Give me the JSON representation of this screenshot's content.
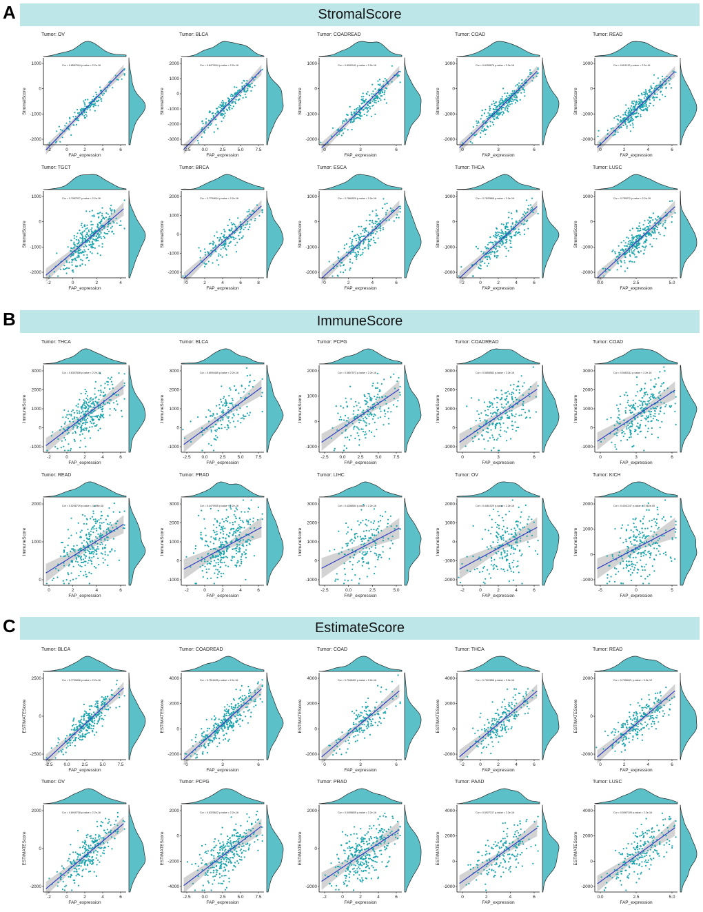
{
  "chart_data": [
    {
      "letter": "A",
      "title": "StromalScore",
      "type": "scatter",
      "xlabel": "FAP_expression",
      "ylabel": "StromalScore",
      "panels": [
        {
          "tumor": "Tumor: OV",
          "cor": "Cor = 0.8567504  p-value < 2.2e-16",
          "xticks": [
            "-2",
            "0",
            "2",
            "4",
            "6"
          ],
          "yticks": [
            "-2000",
            "-1000",
            "0",
            "1000"
          ]
        },
        {
          "tumor": "Tumor: BLCA",
          "cor": "Cor = 0.8473004  p-value < 2.2e-16",
          "xticks": [
            "-2.5",
            "0.0",
            "2.5",
            "5.0",
            "7.5"
          ],
          "yticks": [
            "-3000",
            "-2000",
            "-1000",
            "0",
            "1000",
            "2000"
          ]
        },
        {
          "tumor": "Tumor: COADREAD",
          "cor": "Cor = 0.8182181  p-value < 2.2e-16",
          "xticks": [
            "0",
            "3",
            "6"
          ],
          "yticks": [
            "-2000",
            "-1000",
            "0",
            "1000"
          ]
        },
        {
          "tumor": "Tumor: COAD",
          "cor": "Cor = 0.8155878  p-value < 2.2e-16",
          "xticks": [
            "0",
            "3",
            "6"
          ],
          "yticks": [
            "-2000",
            "-1000",
            "0",
            "1000"
          ]
        },
        {
          "tumor": "Tumor: READ",
          "cor": "Cor = 0.811132  p-value < 2.2e-16",
          "xticks": [
            "0",
            "2",
            "4",
            "6"
          ],
          "yticks": [
            "-2000",
            "-1000",
            "0",
            "1000"
          ]
        },
        {
          "tumor": "Tumor: TGCT",
          "cor": "Cor = 0.7087527  p-value < 2.2e-16",
          "xticks": [
            "-2",
            "0",
            "2",
            "4"
          ],
          "yticks": [
            "-2000",
            "-1000",
            "0",
            "1000"
          ]
        },
        {
          "tumor": "Tumor: BRCA",
          "cor": "Cor = 0.7754634  p-value < 2.2e-16",
          "xticks": [
            "0",
            "2",
            "4",
            "6",
            "8"
          ],
          "yticks": [
            "-2000",
            "-1000",
            "0",
            "1000",
            "2000"
          ]
        },
        {
          "tumor": "Tumor: ESCA",
          "cor": "Cor = 0.7684529  p-value < 2.2e-16",
          "xticks": [
            "0",
            "2",
            "4",
            "6"
          ],
          "yticks": [
            "-2000",
            "-1000",
            "0",
            "1000"
          ]
        },
        {
          "tumor": "Tumor: THCA",
          "cor": "Cor = 0.7633868  p-value < 2.2e-16",
          "xticks": [
            "-2",
            "0",
            "2",
            "4",
            "6"
          ],
          "yticks": [
            "-2000",
            "-1000",
            "0",
            "1000"
          ]
        },
        {
          "tumor": "Tumor: LUSC",
          "cor": "Cor = 0.759072  p-value < 2.2e-16",
          "xticks": [
            "0.0",
            "2.5",
            "5.0"
          ],
          "yticks": [
            "-2000",
            "-1000",
            "0",
            "1000"
          ]
        }
      ]
    },
    {
      "letter": "B",
      "title": "ImmuneScore",
      "type": "scatter",
      "xlabel": "FAP_expression",
      "ylabel": "ImmuneScore",
      "panels": [
        {
          "tumor": "Tumor: THCA",
          "cor": "Cor = 0.6307808  p-value < 2.2e-16",
          "xticks": [
            "-2",
            "0",
            "2",
            "4",
            "6"
          ],
          "yticks": [
            "-1000",
            "0",
            "1000",
            "2000",
            "3000"
          ]
        },
        {
          "tumor": "Tumor: BLCA",
          "cor": "Cor = 0.6094465  p-value < 2.2e-16",
          "xticks": [
            "-2.5",
            "0.0",
            "2.5",
            "5.0",
            "7.5"
          ],
          "yticks": [
            "-1000",
            "0",
            "1000",
            "2000",
            "3000"
          ]
        },
        {
          "tumor": "Tumor: PCPG",
          "cor": "Cor = 0.5657573  p-value < 2.2e-16",
          "xticks": [
            "-2.5",
            "0.0",
            "2.5",
            "5.0",
            "7.5"
          ],
          "yticks": [
            "-1000",
            "0",
            "1000",
            "2000"
          ]
        },
        {
          "tumor": "Tumor: COADREAD",
          "cor": "Cor = 0.5658583  p-value < 2.2e-16",
          "xticks": [
            "0",
            "3",
            "6"
          ],
          "yticks": [
            "-1000",
            "0",
            "1000",
            "2000",
            "3000"
          ]
        },
        {
          "tumor": "Tumor: COAD",
          "cor": "Cor = 0.5463111  p-value < 2.2e-16",
          "xticks": [
            "0",
            "3",
            "6"
          ],
          "yticks": [
            "-1000",
            "0",
            "1000",
            "2000",
            "3000"
          ]
        },
        {
          "tumor": "Tumor: READ",
          "cor": "Cor = 0.5206729  p-value = 4.496e-08",
          "xticks": [
            "0",
            "2",
            "4",
            "6"
          ],
          "yticks": [
            "0",
            "1000",
            "2000"
          ]
        },
        {
          "tumor": "Tumor: PRAD",
          "cor": "Cor = 0.4470905  p-value < 2.2e-16",
          "xticks": [
            "-2",
            "0",
            "2",
            "4",
            "6"
          ],
          "yticks": [
            "-1000",
            "0",
            "1000",
            "2000",
            "3000"
          ]
        },
        {
          "tumor": "Tumor: LIHC",
          "cor": "Cor = 0.4288554  p-value < 2.2e-16",
          "xticks": [
            "-2.5",
            "0.0",
            "2.5",
            "5.0"
          ],
          "yticks": [
            "-1000",
            "0",
            "1000",
            "2000",
            "3000"
          ]
        },
        {
          "tumor": "Tumor: OV",
          "cor": "Cor = 0.4461029  p-value < 2.2e-16",
          "xticks": [
            "-2",
            "0",
            "2",
            "4",
            "6"
          ],
          "yticks": [
            "-2000",
            "-1000",
            "0",
            "1000",
            "2000"
          ]
        },
        {
          "tumor": "Tumor: KICH",
          "cor": "Cor = 0.4341247  p-value = 2.062e-05",
          "xticks": [
            "-5",
            "0",
            "5"
          ],
          "yticks": [
            "-1000",
            "0",
            "1000",
            "2000"
          ]
        }
      ]
    },
    {
      "letter": "C",
      "title": "EstimateScore",
      "type": "scatter",
      "xlabel": "FAP_expression",
      "ylabel": "ESTIMATEScore",
      "panels": [
        {
          "tumor": "Tumor: BLCA",
          "cor": "Cor = 0.7730836  p-value < 2.2e-16",
          "xticks": [
            "-2.5",
            "0.0",
            "2.5",
            "5.0",
            "7.5"
          ],
          "yticks": [
            "-2500",
            "0",
            "2500"
          ]
        },
        {
          "tumor": "Tumor: COADREAD",
          "cor": "Cor = 0.7511105  p-value < 2.2e-16",
          "xticks": [
            "0",
            "3",
            "6"
          ],
          "yticks": [
            "-2000",
            "0",
            "2000",
            "4000"
          ]
        },
        {
          "tumor": "Tumor: COAD",
          "cor": "Cor = 0.7046491  p-value < 2.2e-16",
          "xticks": [
            "0",
            "3",
            "6"
          ],
          "yticks": [
            "-2000",
            "0",
            "2000",
            "4000"
          ]
        },
        {
          "tumor": "Tumor: THCA",
          "cor": "Cor = 0.7022858  p-value < 2.2e-16",
          "xticks": [
            "-2",
            "0",
            "2",
            "4",
            "6"
          ],
          "yticks": [
            "-2000",
            "0",
            "2000",
            "4000"
          ]
        },
        {
          "tumor": "Tumor: READ",
          "cor": "Cor = 0.7058421  p-value = 3.9e-12",
          "xticks": [
            "0",
            "2",
            "4",
            "6"
          ],
          "yticks": [
            "-2000",
            "0",
            "2000"
          ]
        },
        {
          "tumor": "Tumor: OV",
          "cor": "Cor = 0.6949738  p-value < 2.2e-16",
          "xticks": [
            "-2",
            "0",
            "2",
            "4",
            "6"
          ],
          "yticks": [
            "-2000",
            "0",
            "2000"
          ]
        },
        {
          "tumor": "Tumor: PCPG",
          "cor": "Cor = 0.6325632  p-value < 2.2e-16",
          "xticks": [
            "-2.5",
            "0.0",
            "2.5",
            "5.0",
            "7.5"
          ],
          "yticks": [
            "-4000",
            "-2000",
            "0",
            "2000"
          ]
        },
        {
          "tumor": "Tumor: PRAD",
          "cor": "Cor = 0.5498805  p-value < 2.2e-16",
          "xticks": [
            "-2",
            "0",
            "2",
            "4",
            "6"
          ],
          "yticks": [
            "-2000",
            "0",
            "2000"
          ]
        },
        {
          "tumor": "Tumor: PAAD",
          "cor": "Cor = 0.5927137  p-value < 2.2e-16",
          "xticks": [
            "0",
            "2",
            "4",
            "6"
          ],
          "yticks": [
            "-2000",
            "0",
            "2000",
            "4000"
          ]
        },
        {
          "tumor": "Tumor: LUSC",
          "cor": "Cor = 0.5987195  p-value < 2.2e-16",
          "xticks": [
            "0.0",
            "2.5",
            "5.0"
          ],
          "yticks": [
            "-2000",
            "0",
            "2000",
            "4000"
          ]
        }
      ]
    }
  ],
  "colors": {
    "band": "#bde6e9",
    "point": "#1aa3ad",
    "density": "#5bc0c7",
    "line": "#2f3fc2",
    "ci": "#c8c8c8"
  }
}
